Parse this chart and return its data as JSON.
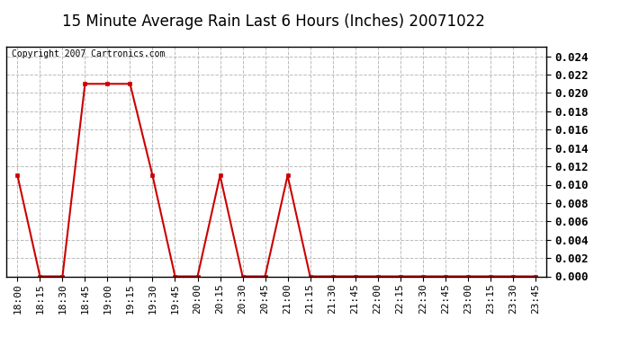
{
  "title": "15 Minute Average Rain Last 6 Hours (Inches) 20071022",
  "copyright_text": "Copyright 2007 Cartronics.com",
  "line_color": "#cc0000",
  "background_color": "#ffffff",
  "grid_color": "#bbbbbb",
  "x_labels": [
    "18:00",
    "18:15",
    "18:30",
    "18:45",
    "19:00",
    "19:15",
    "19:30",
    "19:45",
    "20:00",
    "20:15",
    "20:30",
    "20:45",
    "21:00",
    "21:15",
    "21:30",
    "21:45",
    "22:00",
    "22:15",
    "22:30",
    "22:45",
    "23:00",
    "23:15",
    "23:30",
    "23:45"
  ],
  "y_values": [
    0.011,
    0.0,
    0.0,
    0.021,
    0.021,
    0.021,
    0.011,
    0.0,
    0.0,
    0.011,
    0.0,
    0.0,
    0.011,
    0.0,
    0.0,
    0.0,
    0.0,
    0.0,
    0.0,
    0.0,
    0.0,
    0.0,
    0.0,
    0.0
  ],
  "ylim": [
    0.0,
    0.025
  ],
  "yticks": [
    0.0,
    0.002,
    0.004,
    0.006,
    0.008,
    0.01,
    0.012,
    0.014,
    0.016,
    0.018,
    0.02,
    0.022,
    0.024
  ],
  "title_fontsize": 12,
  "copyright_fontsize": 7,
  "tick_fontsize": 8,
  "ytick_fontsize": 9
}
